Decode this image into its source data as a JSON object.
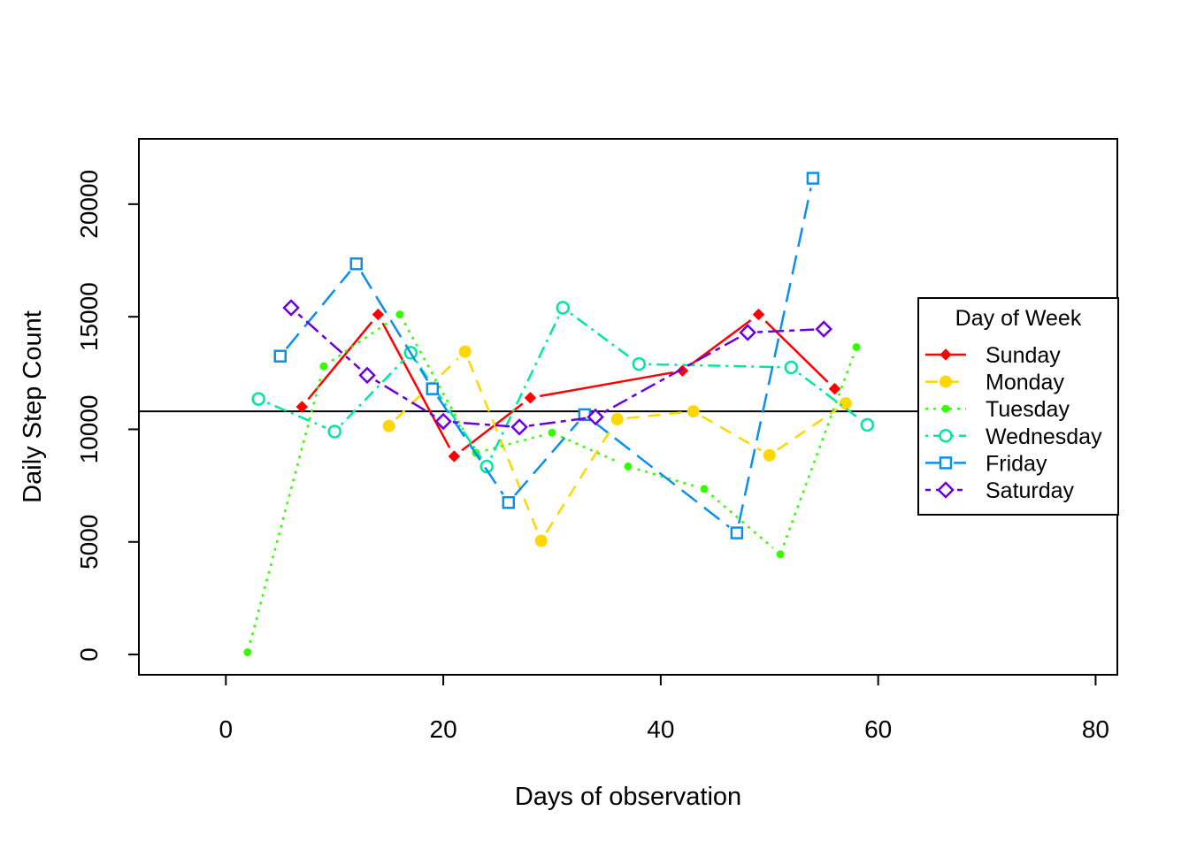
{
  "chart_data": {
    "type": "line",
    "title": "",
    "xlabel": "Days of observation",
    "ylabel": "Daily Step Count",
    "xlim": [
      -8,
      82
    ],
    "ylim": [
      -900,
      22900
    ],
    "x_ticks": [
      0,
      20,
      40,
      60,
      80
    ],
    "x_tick_labels": [
      "0",
      "20",
      "40",
      "60",
      "80"
    ],
    "y_ticks": [
      0,
      5000,
      10000,
      15000,
      20000
    ],
    "y_tick_labels": [
      "0",
      "5000",
      "10000",
      "15000",
      "20000"
    ],
    "grid": false,
    "reference_line": {
      "orientation": "horizontal",
      "y": 10800,
      "color": "#000000"
    },
    "legend": {
      "title": "Day of Week",
      "position": "right"
    },
    "series": [
      {
        "name": "Sunday",
        "color": "#ff0000",
        "dash": "solid",
        "marker": "diamond-filled",
        "points": [
          [
            7,
            11000
          ],
          [
            14,
            15100
          ],
          [
            21,
            8800
          ],
          [
            28,
            11400
          ],
          [
            42,
            12600
          ],
          [
            49,
            15100
          ],
          [
            56,
            11800
          ]
        ]
      },
      {
        "name": "Monday",
        "color": "#ffd700",
        "dash": "dashed",
        "marker": "circle-filled-large",
        "points": [
          [
            15,
            10150
          ],
          [
            22,
            13450
          ],
          [
            29,
            5050
          ],
          [
            36,
            10450
          ],
          [
            43,
            10800
          ],
          [
            50,
            8850
          ],
          [
            57,
            11150
          ]
        ]
      },
      {
        "name": "Tuesday",
        "color": "#33ff00",
        "dash": "dotted",
        "marker": "circle-filled-small",
        "points": [
          [
            2,
            100
          ],
          [
            9,
            12800
          ],
          [
            16,
            15100
          ],
          [
            23,
            8950
          ],
          [
            30,
            9850
          ],
          [
            37,
            8350
          ],
          [
            44,
            7350
          ],
          [
            51,
            4450
          ],
          [
            58,
            13650
          ]
        ]
      },
      {
        "name": "Wednesday",
        "color": "#00e8a0",
        "dash": "dashdot",
        "marker": "circle-open",
        "points": [
          [
            3,
            11350
          ],
          [
            10,
            9900
          ],
          [
            17,
            13400
          ],
          [
            24,
            8350
          ],
          [
            31,
            15400
          ],
          [
            38,
            12900
          ],
          [
            52,
            12750
          ],
          [
            59,
            10200
          ]
        ]
      },
      {
        "name": "Friday",
        "color": "#0a8ff0",
        "dash": "longdash",
        "marker": "square-open",
        "points": [
          [
            5,
            13250
          ],
          [
            12,
            17350
          ],
          [
            19,
            11800
          ],
          [
            26,
            6750
          ],
          [
            33,
            10650
          ],
          [
            47,
            5400
          ],
          [
            54,
            21150
          ]
        ]
      },
      {
        "name": "Saturday",
        "color": "#6a00e0",
        "dash": "twodash",
        "marker": "diamond-open",
        "points": [
          [
            6,
            15400
          ],
          [
            13,
            12400
          ],
          [
            20,
            10350
          ],
          [
            27,
            10100
          ],
          [
            34,
            10550
          ],
          [
            48,
            14300
          ],
          [
            55,
            14450
          ]
        ]
      }
    ]
  }
}
